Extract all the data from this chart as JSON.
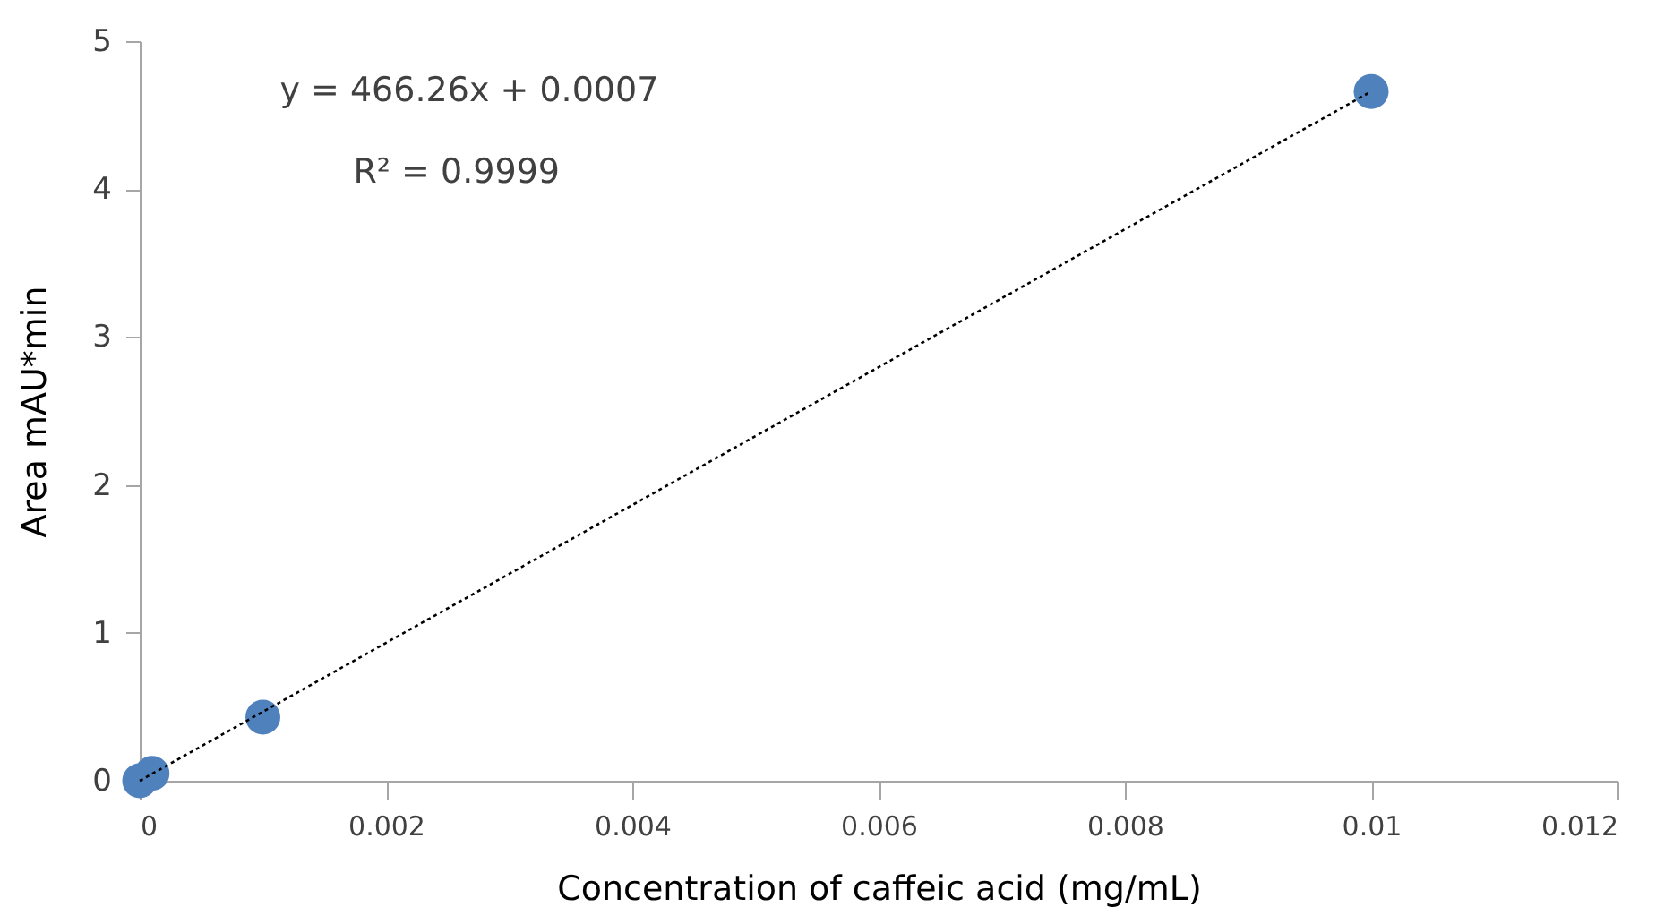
{
  "chart_data": {
    "type": "scatter",
    "xlabel": "Concentration of caffeic acid (mg/mL)",
    "ylabel": "Area mAU*min",
    "x": [
      0,
      0.0001,
      0.001,
      0.01
    ],
    "series": [
      {
        "color": "#4f81bd",
        "values": [
          0,
          0.05,
          0.43,
          4.66
        ],
        "marker": "circle"
      },
      {
        "type": "line",
        "color": "#000000",
        "x": [
          0,
          0.01
        ],
        "values": [
          0,
          4.66
        ],
        "line_style": "dotted",
        "marker": "none"
      }
    ],
    "annotations": [
      "y = 466.26x + 0.0007",
      "R² = 0.9999"
    ],
    "xlim": [
      0,
      0.012
    ],
    "xticks": [
      0,
      0.002,
      0.004,
      0.006,
      0.008,
      0.01,
      0.012
    ],
    "ylim": [
      0,
      5
    ],
    "yticks": [
      0,
      1,
      2,
      3,
      4,
      5
    ],
    "grid": false
  }
}
